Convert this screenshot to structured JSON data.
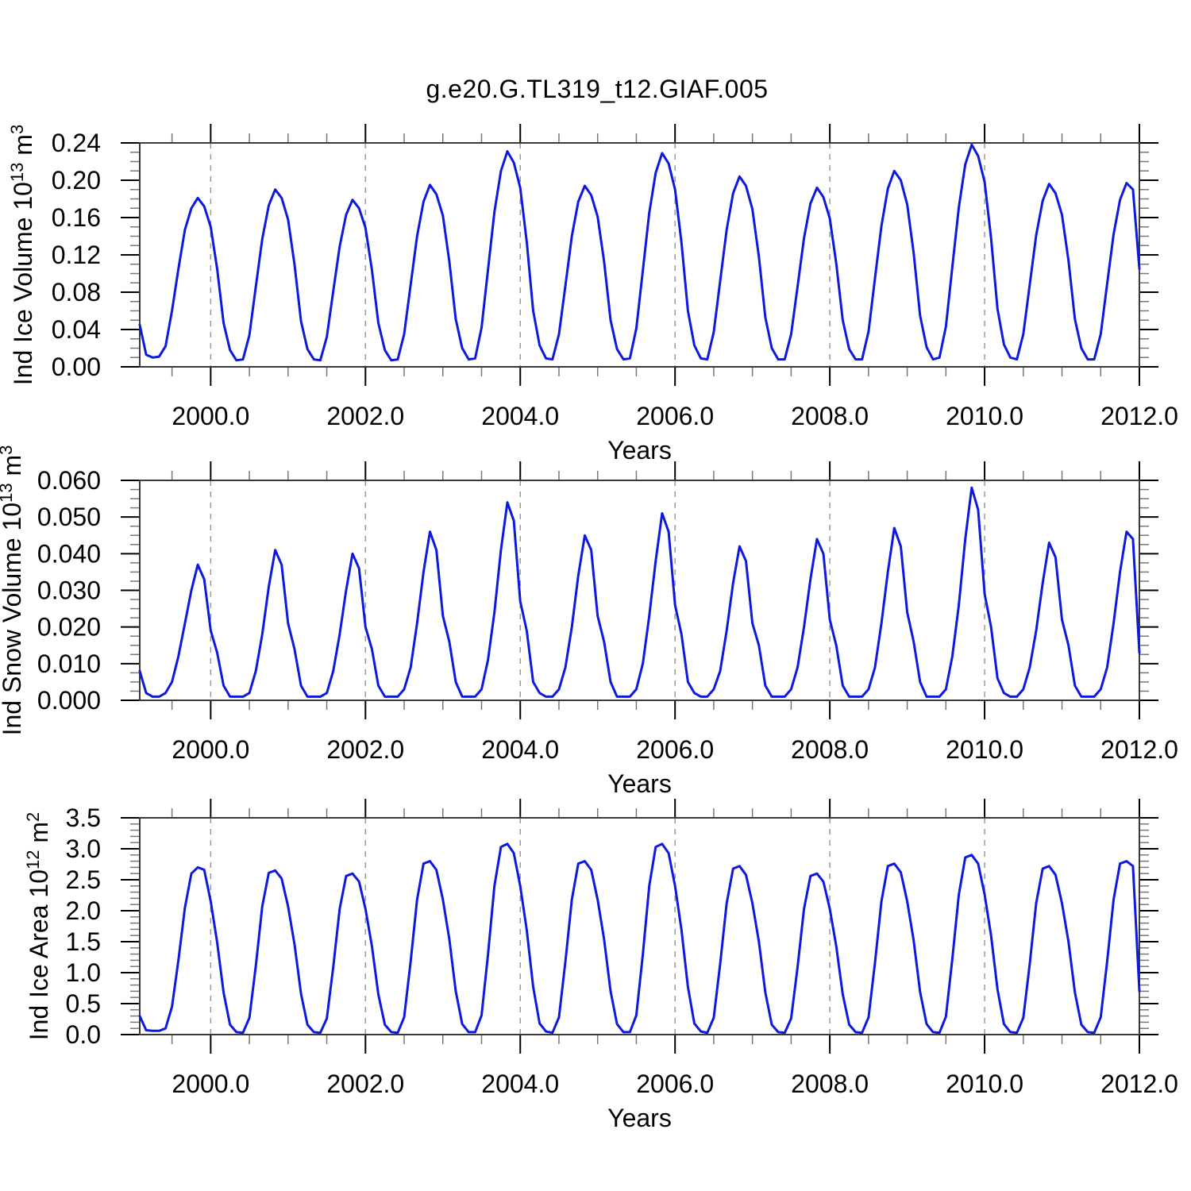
{
  "page": {
    "title": "g.e20.G.TL319_t12.GIAF.005"
  },
  "style": {
    "background": "#ffffff",
    "line_color": "#0d18e0",
    "frame_color": "#3a3a3a",
    "tick_color": "#000000",
    "minor_tick_color": "#777777",
    "grid_color": "#9a9a9a",
    "text_color": "#000000"
  },
  "chart_data": [
    {
      "type": "line",
      "name": "ind-ice-volume",
      "title": "g.e20.G.TL319_t12.GIAF.005",
      "ylabel": "Ind Ice Volume 10^13 m^3",
      "ylabel_parts": [
        {
          "t": "Ind Ice Volume 10"
        },
        {
          "t": "13",
          "sup": true
        },
        {
          "t": " m"
        },
        {
          "t": "3",
          "sup": true
        }
      ],
      "xlabel": "Years",
      "xlim": [
        1999.0833,
        2012.0
      ],
      "ylim": [
        0,
        0.24
      ],
      "xticks_major": [
        2000,
        2002,
        2004,
        2006,
        2008,
        2010,
        2012
      ],
      "xtick_labels": [
        "2000.0",
        "2002.0",
        "2004.0",
        "2006.0",
        "2008.0",
        "2010.0",
        "2012.0"
      ],
      "xtick_minor_step": 0.5,
      "x_gridlines": [
        2000,
        2002,
        2004,
        2006,
        2008,
        2010
      ],
      "grid_on": true,
      "legend": "none",
      "ytick_major_step": 0.04,
      "ytick_minor_step": 0.01,
      "ytick_labels": [
        "0.00",
        "0.04",
        "0.08",
        "0.12",
        "0.16",
        "0.20",
        "0.24"
      ],
      "x_start": 1999.0833333,
      "x_step": 0.0833333333,
      "values": [
        0.045,
        0.013,
        0.01,
        0.011,
        0.022,
        0.06,
        0.105,
        0.147,
        0.17,
        0.181,
        0.172,
        0.15,
        0.105,
        0.047,
        0.018,
        0.007,
        0.008,
        0.034,
        0.086,
        0.137,
        0.173,
        0.19,
        0.181,
        0.158,
        0.11,
        0.049,
        0.019,
        0.008,
        0.007,
        0.032,
        0.081,
        0.129,
        0.163,
        0.179,
        0.17,
        0.149,
        0.104,
        0.047,
        0.018,
        0.007,
        0.008,
        0.035,
        0.088,
        0.14,
        0.177,
        0.195,
        0.185,
        0.162,
        0.113,
        0.051,
        0.02,
        0.008,
        0.009,
        0.042,
        0.104,
        0.166,
        0.21,
        0.231,
        0.219,
        0.192,
        0.134,
        0.06,
        0.023,
        0.009,
        0.008,
        0.035,
        0.087,
        0.14,
        0.177,
        0.194,
        0.184,
        0.161,
        0.113,
        0.05,
        0.019,
        0.008,
        0.009,
        0.041,
        0.103,
        0.165,
        0.208,
        0.229,
        0.218,
        0.19,
        0.133,
        0.06,
        0.023,
        0.009,
        0.008,
        0.037,
        0.092,
        0.147,
        0.186,
        0.204,
        0.194,
        0.169,
        0.118,
        0.053,
        0.02,
        0.008,
        0.008,
        0.035,
        0.086,
        0.138,
        0.175,
        0.192,
        0.182,
        0.159,
        0.111,
        0.05,
        0.019,
        0.008,
        0.008,
        0.038,
        0.095,
        0.151,
        0.191,
        0.21,
        0.2,
        0.174,
        0.122,
        0.055,
        0.021,
        0.008,
        0.01,
        0.043,
        0.107,
        0.171,
        0.217,
        0.238,
        0.226,
        0.198,
        0.138,
        0.062,
        0.024,
        0.01,
        0.008,
        0.035,
        0.088,
        0.141,
        0.178,
        0.196,
        0.186,
        0.163,
        0.114,
        0.051,
        0.02,
        0.008,
        0.008,
        0.035,
        0.089,
        0.142,
        0.179,
        0.197,
        0.19,
        0.105
      ]
    },
    {
      "type": "line",
      "name": "ind-snow-volume",
      "ylabel": "Ind Snow Volume 10^13 m^3",
      "ylabel_parts": [
        {
          "t": "Ind Snow Volume 10"
        },
        {
          "t": "13",
          "sup": true
        },
        {
          "t": " m"
        },
        {
          "t": "3",
          "sup": true
        }
      ],
      "xlabel": "Years",
      "xlim": [
        1999.0833,
        2012.0
      ],
      "ylim": [
        0,
        0.06
      ],
      "xticks_major": [
        2000,
        2002,
        2004,
        2006,
        2008,
        2010,
        2012
      ],
      "xtick_labels": [
        "2000.0",
        "2002.0",
        "2004.0",
        "2006.0",
        "2008.0",
        "2010.0",
        "2012.0"
      ],
      "xtick_minor_step": 0.5,
      "x_gridlines": [
        2000,
        2002,
        2004,
        2006,
        2008,
        2010
      ],
      "grid_on": true,
      "legend": "none",
      "ytick_major_step": 0.01,
      "ytick_minor_step": 0.0025,
      "ytick_labels": [
        "0.000",
        "0.010",
        "0.020",
        "0.030",
        "0.040",
        "0.050",
        "0.060"
      ],
      "x_start": 1999.0833333,
      "x_step": 0.0833333333,
      "values": [
        0.008,
        0.002,
        0.001,
        0.001,
        0.002,
        0.005,
        0.012,
        0.021,
        0.03,
        0.037,
        0.033,
        0.019,
        0.013,
        0.004,
        0.001,
        0.001,
        0.001,
        0.002,
        0.008,
        0.018,
        0.031,
        0.041,
        0.037,
        0.021,
        0.014,
        0.004,
        0.001,
        0.001,
        0.001,
        0.002,
        0.008,
        0.018,
        0.03,
        0.04,
        0.036,
        0.02,
        0.014,
        0.004,
        0.001,
        0.001,
        0.001,
        0.003,
        0.009,
        0.021,
        0.035,
        0.046,
        0.041,
        0.023,
        0.016,
        0.005,
        0.001,
        0.001,
        0.001,
        0.003,
        0.011,
        0.024,
        0.041,
        0.054,
        0.049,
        0.027,
        0.019,
        0.005,
        0.002,
        0.001,
        0.001,
        0.003,
        0.009,
        0.02,
        0.034,
        0.045,
        0.041,
        0.023,
        0.016,
        0.005,
        0.001,
        0.001,
        0.001,
        0.003,
        0.01,
        0.023,
        0.038,
        0.051,
        0.046,
        0.026,
        0.018,
        0.005,
        0.002,
        0.001,
        0.001,
        0.003,
        0.008,
        0.019,
        0.032,
        0.042,
        0.038,
        0.021,
        0.015,
        0.004,
        0.001,
        0.001,
        0.001,
        0.003,
        0.009,
        0.02,
        0.033,
        0.044,
        0.04,
        0.022,
        0.015,
        0.004,
        0.001,
        0.001,
        0.001,
        0.003,
        0.009,
        0.021,
        0.035,
        0.047,
        0.042,
        0.024,
        0.016,
        0.005,
        0.001,
        0.001,
        0.001,
        0.003,
        0.012,
        0.026,
        0.044,
        0.058,
        0.052,
        0.029,
        0.02,
        0.006,
        0.002,
        0.001,
        0.001,
        0.003,
        0.009,
        0.019,
        0.032,
        0.043,
        0.039,
        0.022,
        0.015,
        0.004,
        0.001,
        0.001,
        0.001,
        0.003,
        0.009,
        0.021,
        0.035,
        0.046,
        0.044,
        0.013
      ]
    },
    {
      "type": "line",
      "name": "ind-ice-area",
      "ylabel": "Ind Ice Area 10^12 m^2",
      "ylabel_parts": [
        {
          "t": "Ind Ice Area 10"
        },
        {
          "t": "12",
          "sup": true
        },
        {
          "t": " m"
        },
        {
          "t": "2",
          "sup": true
        }
      ],
      "xlabel": "Years",
      "xlim": [
        1999.0833,
        2012.0
      ],
      "ylim": [
        0,
        3.5
      ],
      "xticks_major": [
        2000,
        2002,
        2004,
        2006,
        2008,
        2010,
        2012
      ],
      "xtick_labels": [
        "2000.0",
        "2002.0",
        "2004.0",
        "2006.0",
        "2008.0",
        "2010.0",
        "2012.0"
      ],
      "xtick_minor_step": 0.5,
      "x_gridlines": [
        2000,
        2002,
        2004,
        2006,
        2008,
        2010
      ],
      "grid_on": true,
      "legend": "none",
      "ytick_major_step": 0.5,
      "ytick_minor_step": 0.1,
      "ytick_labels": [
        "0.0",
        "0.5",
        "1.0",
        "1.5",
        "2.0",
        "2.5",
        "3.0",
        "3.5"
      ],
      "x_start": 1999.0833333,
      "x_step": 0.0833333333,
      "values": [
        0.3,
        0.07,
        0.06,
        0.06,
        0.1,
        0.45,
        1.2,
        2.05,
        2.6,
        2.7,
        2.66,
        2.15,
        1.49,
        0.68,
        0.16,
        0.04,
        0.03,
        0.27,
        1.11,
        2.07,
        2.61,
        2.65,
        2.52,
        2.07,
        1.46,
        0.66,
        0.16,
        0.04,
        0.03,
        0.26,
        1.09,
        2.03,
        2.56,
        2.6,
        2.47,
        2.03,
        1.43,
        0.65,
        0.16,
        0.04,
        0.03,
        0.28,
        1.18,
        2.18,
        2.76,
        2.8,
        2.66,
        2.18,
        1.54,
        0.7,
        0.17,
        0.04,
        0.04,
        0.31,
        1.29,
        2.4,
        3.03,
        3.08,
        2.93,
        2.4,
        1.69,
        0.77,
        0.18,
        0.05,
        0.03,
        0.28,
        1.18,
        2.18,
        2.76,
        2.8,
        2.66,
        2.18,
        1.54,
        0.7,
        0.17,
        0.04,
        0.04,
        0.31,
        1.29,
        2.4,
        3.03,
        3.08,
        2.93,
        2.4,
        1.69,
        0.77,
        0.18,
        0.05,
        0.03,
        0.27,
        1.14,
        2.12,
        2.68,
        2.72,
        2.58,
        2.12,
        1.5,
        0.68,
        0.16,
        0.04,
        0.03,
        0.26,
        1.09,
        2.03,
        2.56,
        2.6,
        2.47,
        2.03,
        1.43,
        0.65,
        0.16,
        0.04,
        0.03,
        0.28,
        1.16,
        2.15,
        2.72,
        2.76,
        2.62,
        2.15,
        1.52,
        0.69,
        0.17,
        0.04,
        0.03,
        0.29,
        1.22,
        2.26,
        2.86,
        2.9,
        2.76,
        2.26,
        1.6,
        0.73,
        0.17,
        0.04,
        0.03,
        0.27,
        1.14,
        2.12,
        2.68,
        2.72,
        2.58,
        2.12,
        1.5,
        0.68,
        0.16,
        0.04,
        0.03,
        0.28,
        1.18,
        2.18,
        2.76,
        2.8,
        2.72,
        0.7
      ]
    }
  ]
}
